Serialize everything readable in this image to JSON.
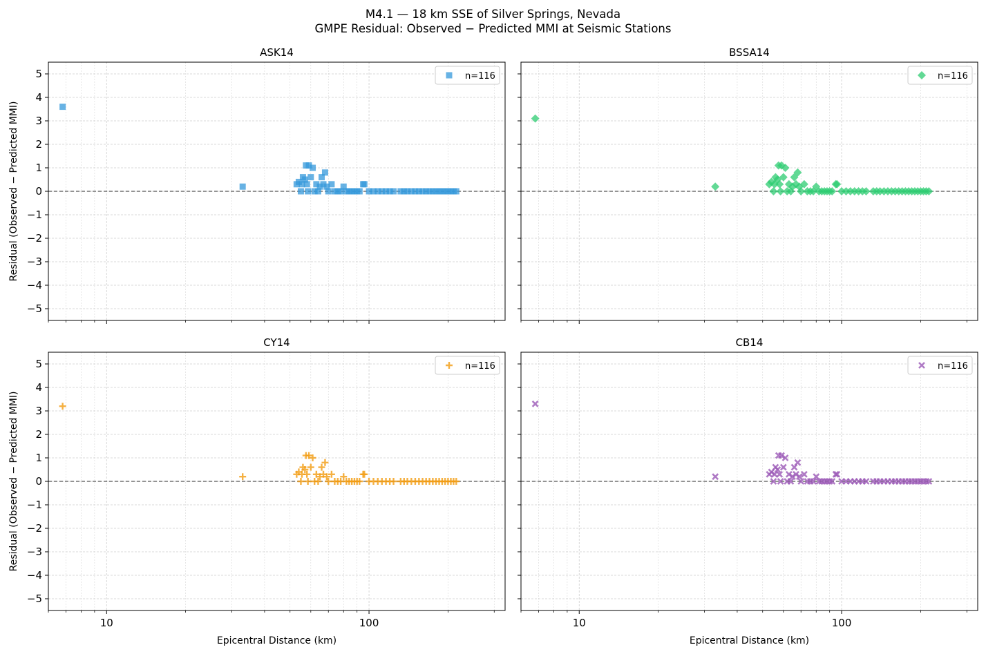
{
  "figure": {
    "title_line1": "M4.1 — 18 km SSE of Silver Springs, Nevada",
    "title_line2": "GMPE Residual: Observed − Predicted MMI at Seismic Stations"
  },
  "shared_axes": {
    "xlabel": "Epicentral Distance (km)",
    "ylabel": "Residual (Observed − Predicted MMI)",
    "xscale": "log",
    "xlim": [
      6,
      330
    ],
    "ylim": [
      -5.5,
      5.5
    ],
    "yticks": [
      5,
      4,
      3,
      2,
      1,
      0,
      -1,
      -2,
      -3,
      -4,
      -5
    ],
    "xticks": [
      10,
      100
    ],
    "xtick_labels": [
      "10",
      "100"
    ],
    "grid": true,
    "reference_line_y": 0
  },
  "chart_data": [
    {
      "type": "scatter",
      "title": "ASK14",
      "legend": "n=116",
      "legend_position": "top-right",
      "color": "#3498db",
      "marker": "square",
      "x": [
        6.8,
        33,
        53,
        54,
        55,
        55.5,
        56,
        57,
        57.5,
        58,
        58.5,
        59,
        60,
        61,
        62,
        63,
        64,
        65,
        66,
        67,
        68,
        69,
        70,
        72,
        74,
        76,
        78,
        80,
        82,
        84,
        86,
        88,
        90,
        92,
        95,
        96,
        100,
        104,
        108,
        112,
        116,
        120,
        124,
        132,
        136,
        140,
        145,
        150,
        155,
        160,
        165,
        170,
        175,
        180,
        185,
        190,
        195,
        200,
        205,
        210,
        215
      ],
      "y": [
        3.6,
        0.2,
        0.3,
        0.4,
        0.0,
        0.3,
        0.6,
        0.5,
        1.1,
        0.3,
        0.0,
        1.1,
        0.6,
        1.0,
        0.0,
        0.3,
        0.0,
        0.2,
        0.6,
        0.3,
        0.8,
        0.2,
        0.0,
        0.3,
        0.0,
        0.0,
        0.0,
        0.2,
        0.0,
        0.0,
        0.0,
        0.0,
        0.0,
        0.0,
        0.3,
        0.3,
        0.0,
        0.0,
        0.0,
        0.0,
        0.0,
        0.0,
        0.0,
        0.0,
        0.0,
        0.0,
        0.0,
        0.0,
        0.0,
        0.0,
        0.0,
        0.0,
        0.0,
        0.0,
        0.0,
        0.0,
        0.0,
        0.0,
        0.0,
        0.0,
        0.0
      ]
    },
    {
      "type": "scatter",
      "title": "BSSA14",
      "legend": "n=116",
      "legend_position": "top-right",
      "color": "#2ecc71",
      "marker": "diamond",
      "x": [
        6.8,
        33,
        53,
        54,
        55,
        55.5,
        56,
        57,
        57.5,
        58,
        58.5,
        59,
        60,
        61,
        62,
        63,
        64,
        65,
        66,
        67,
        68,
        69,
        70,
        72,
        74,
        76,
        78,
        80,
        82,
        84,
        86,
        88,
        90,
        92,
        95,
        96,
        100,
        104,
        108,
        112,
        116,
        120,
        124,
        132,
        136,
        140,
        145,
        150,
        155,
        160,
        165,
        170,
        175,
        180,
        185,
        190,
        195,
        200,
        205,
        210,
        215
      ],
      "y": [
        3.1,
        0.2,
        0.3,
        0.4,
        0.0,
        0.3,
        0.6,
        0.5,
        1.1,
        0.3,
        0.0,
        1.1,
        0.6,
        1.0,
        0.0,
        0.3,
        0.0,
        0.2,
        0.6,
        0.3,
        0.8,
        0.2,
        0.0,
        0.3,
        0.0,
        0.0,
        0.0,
        0.2,
        0.0,
        0.0,
        0.0,
        0.0,
        0.0,
        0.0,
        0.3,
        0.3,
        0.0,
        0.0,
        0.0,
        0.0,
        0.0,
        0.0,
        0.0,
        0.0,
        0.0,
        0.0,
        0.0,
        0.0,
        0.0,
        0.0,
        0.0,
        0.0,
        0.0,
        0.0,
        0.0,
        0.0,
        0.0,
        0.0,
        0.0,
        0.0,
        0.0
      ]
    },
    {
      "type": "scatter",
      "title": "CY14",
      "legend": "n=116",
      "legend_position": "top-right",
      "color": "#f39c12",
      "marker": "plus",
      "x": [
        6.8,
        33,
        53,
        54,
        55,
        55.5,
        56,
        57,
        57.5,
        58,
        58.5,
        59,
        60,
        61,
        62,
        63,
        64,
        65,
        66,
        67,
        68,
        69,
        70,
        72,
        74,
        76,
        78,
        80,
        82,
        84,
        86,
        88,
        90,
        92,
        95,
        96,
        100,
        104,
        108,
        112,
        116,
        120,
        124,
        132,
        136,
        140,
        145,
        150,
        155,
        160,
        165,
        170,
        175,
        180,
        185,
        190,
        195,
        200,
        205,
        210,
        215
      ],
      "y": [
        3.2,
        0.2,
        0.3,
        0.4,
        0.0,
        0.3,
        0.6,
        0.5,
        1.1,
        0.3,
        0.0,
        1.1,
        0.6,
        1.0,
        0.0,
        0.3,
        0.0,
        0.2,
        0.6,
        0.3,
        0.8,
        0.2,
        0.0,
        0.3,
        0.0,
        0.0,
        0.0,
        0.2,
        0.0,
        0.0,
        0.0,
        0.0,
        0.0,
        0.0,
        0.3,
        0.3,
        0.0,
        0.0,
        0.0,
        0.0,
        0.0,
        0.0,
        0.0,
        0.0,
        0.0,
        0.0,
        0.0,
        0.0,
        0.0,
        0.0,
        0.0,
        0.0,
        0.0,
        0.0,
        0.0,
        0.0,
        0.0,
        0.0,
        0.0,
        0.0,
        0.0
      ]
    },
    {
      "type": "scatter",
      "title": "CB14",
      "legend": "n=116",
      "legend_position": "top-right",
      "color": "#9b59b6",
      "marker": "x",
      "x": [
        6.8,
        33,
        53,
        54,
        55,
        55.5,
        56,
        57,
        57.5,
        58,
        58.5,
        59,
        60,
        61,
        62,
        63,
        64,
        65,
        66,
        67,
        68,
        69,
        70,
        72,
        74,
        76,
        78,
        80,
        82,
        84,
        86,
        88,
        90,
        92,
        95,
        96,
        100,
        104,
        108,
        112,
        116,
        120,
        124,
        132,
        136,
        140,
        145,
        150,
        155,
        160,
        165,
        170,
        175,
        180,
        185,
        190,
        195,
        200,
        205,
        210,
        215
      ],
      "y": [
        3.3,
        0.2,
        0.3,
        0.4,
        0.0,
        0.3,
        0.6,
        0.5,
        1.1,
        0.3,
        0.0,
        1.1,
        0.6,
        1.0,
        0.0,
        0.3,
        0.0,
        0.2,
        0.6,
        0.3,
        0.8,
        0.2,
        0.0,
        0.3,
        0.0,
        0.0,
        0.0,
        0.2,
        0.0,
        0.0,
        0.0,
        0.0,
        0.0,
        0.0,
        0.3,
        0.3,
        0.0,
        0.0,
        0.0,
        0.0,
        0.0,
        0.0,
        0.0,
        0.0,
        0.0,
        0.0,
        0.0,
        0.0,
        0.0,
        0.0,
        0.0,
        0.0,
        0.0,
        0.0,
        0.0,
        0.0,
        0.0,
        0.0,
        0.0,
        0.0,
        0.0
      ]
    }
  ]
}
